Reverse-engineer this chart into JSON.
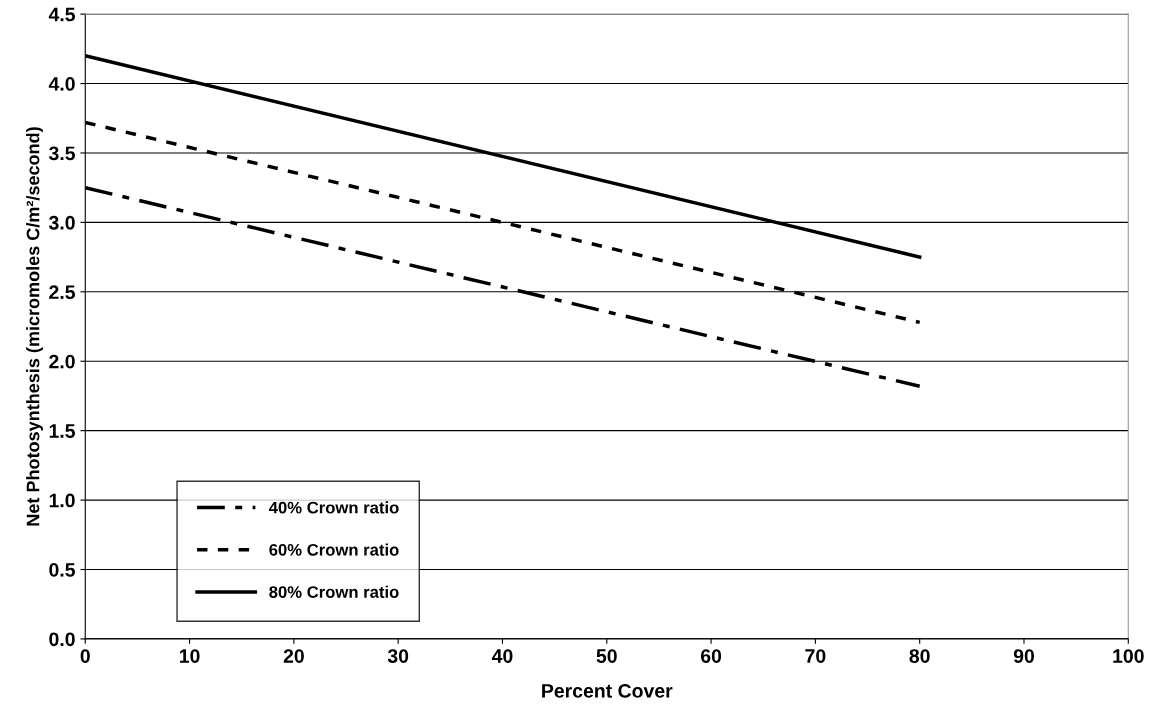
{
  "chart_data": {
    "type": "line",
    "xlabel": "Percent Cover",
    "ylabel": "Net Photosynthesis (micromoles C/m²/second)",
    "xlim": [
      0,
      100
    ],
    "xticks": [
      0,
      10,
      20,
      30,
      40,
      50,
      60,
      70,
      80,
      90,
      100
    ],
    "ylim": [
      0,
      4.5
    ],
    "yticks": [
      {
        "value": 0,
        "label": "0.0"
      },
      {
        "value": 0.5,
        "label": "0.5"
      },
      {
        "value": 1,
        "label": "1.0"
      },
      {
        "value": 1.5,
        "label": "1.5"
      },
      {
        "value": 2,
        "label": "2.0"
      },
      {
        "value": 2.5,
        "label": "2.5"
      },
      {
        "value": 3,
        "label": "3.0"
      },
      {
        "value": 3.5,
        "label": "3.5"
      },
      {
        "value": 4,
        "label": "4.0"
      },
      {
        "value": 4.5,
        "label": "4.5"
      }
    ],
    "grid": "y",
    "legend": "bottom left",
    "marker": "none",
    "x": [
      0,
      80
    ],
    "series": [
      {
        "name": "40% Crown ratio",
        "color": "#000000",
        "line_style": "dashed",
        "values": [
          3.25,
          1.82
        ]
      },
      {
        "name": "60% Crown ratio",
        "color": "#000000",
        "line_style": "dotted",
        "values": [
          3.72,
          2.28
        ]
      },
      {
        "name": "80% Crown ratio",
        "color": "#000000",
        "line_style": "solid",
        "values": [
          4.2,
          2.75
        ]
      }
    ]
  }
}
